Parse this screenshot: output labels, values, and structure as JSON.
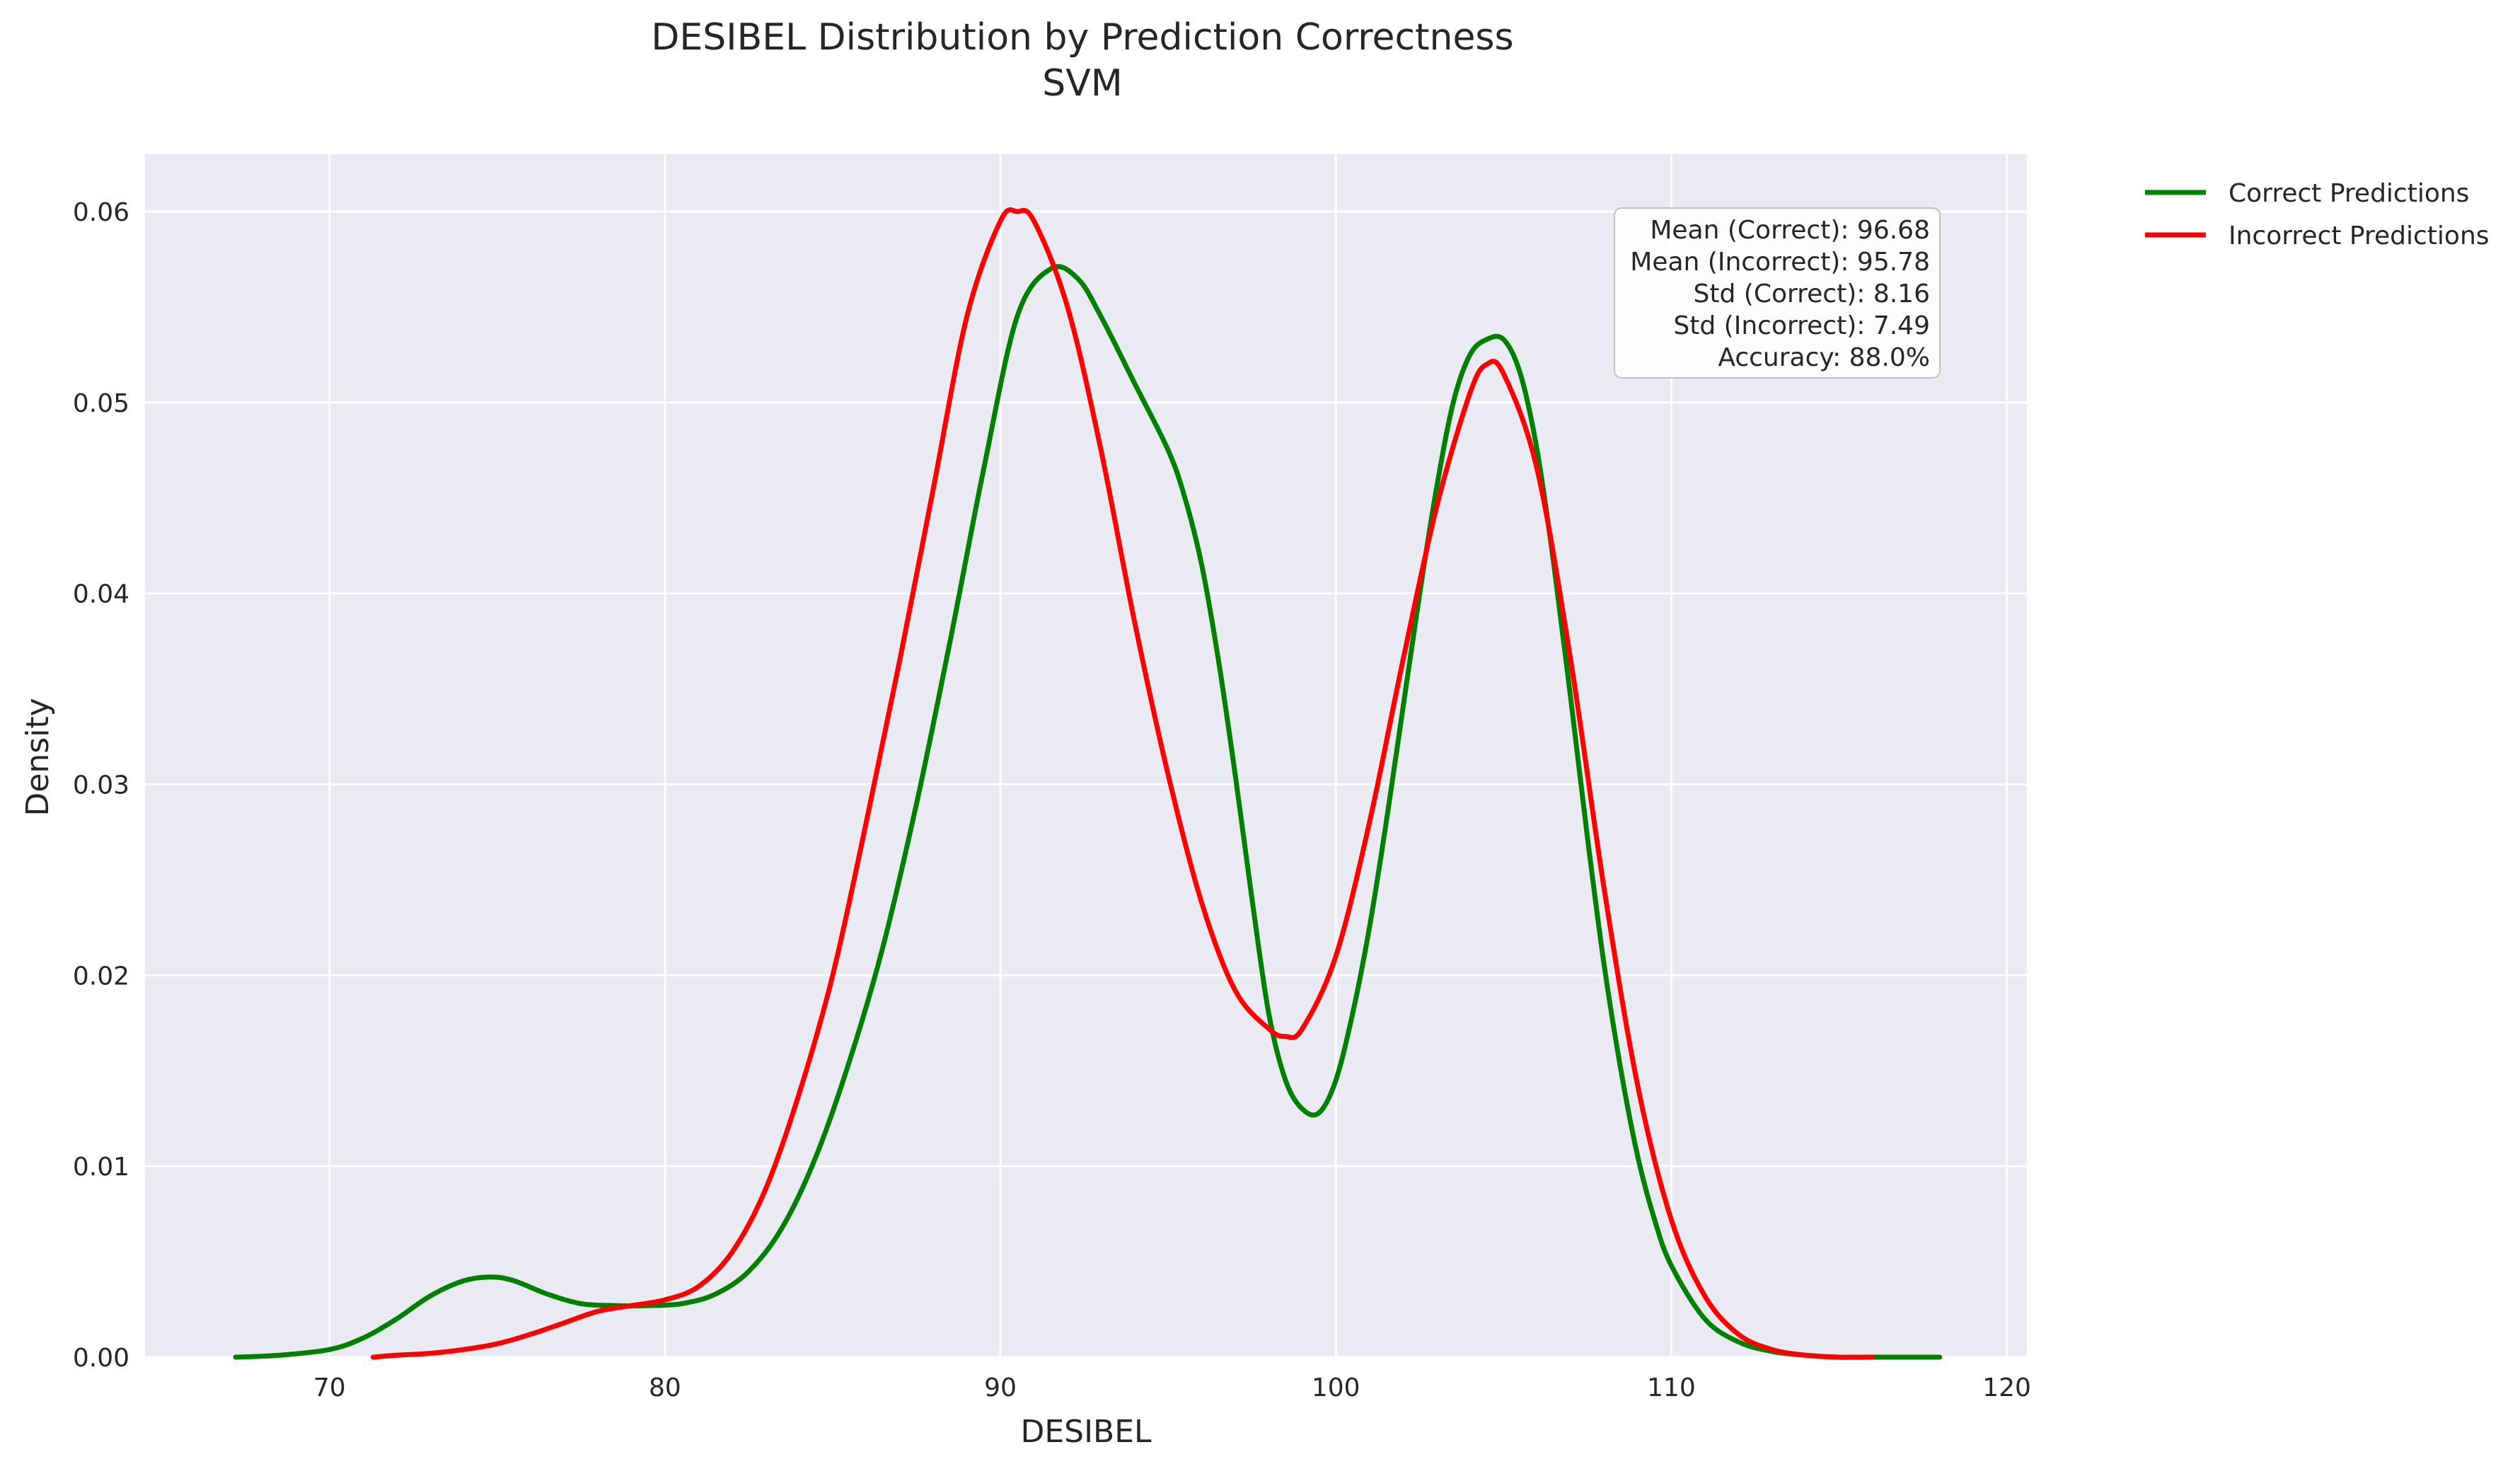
{
  "chart_data": {
    "type": "line",
    "title": "DESIBEL Distribution by Prediction Correctness",
    "subtitle": "SVM",
    "xlabel": "DESIBEL",
    "ylabel": "Density",
    "xlim": [
      64.5,
      120.6
    ],
    "ylim": [
      0,
      0.063
    ],
    "x_ticks": [
      70,
      80,
      90,
      100,
      110,
      120
    ],
    "y_ticks": [
      0.0,
      0.01,
      0.02,
      0.03,
      0.04,
      0.05,
      0.06
    ],
    "grid": true,
    "legend_placement": "outside-top-right",
    "series": [
      {
        "name": "Correct Predictions",
        "color": "#008000",
        "x": [
          67.2,
          68.5,
          70,
          71,
          72,
          73,
          74,
          74.8,
          75.5,
          76.5,
          77.5,
          78.5,
          79.5,
          80.5,
          81.5,
          82.5,
          83.5,
          84.5,
          85.5,
          86.5,
          87.5,
          88.5,
          89.5,
          90.5,
          91.5,
          92.3,
          93,
          94,
          95,
          95.5,
          96,
          96.5,
          97,
          97.5,
          98,
          98.5,
          99,
          99.5,
          100,
          100.5,
          101,
          101.5,
          102,
          102.5,
          103,
          103.5,
          104,
          104.5,
          105,
          105.5,
          106,
          106.5,
          107,
          107.5,
          108,
          108.5,
          109,
          109.5,
          110,
          111,
          112,
          113,
          114,
          115,
          116,
          117,
          118
        ],
        "y": [
          0.0,
          0.0001,
          0.0004,
          0.001,
          0.002,
          0.0032,
          0.004,
          0.0042,
          0.004,
          0.0033,
          0.0028,
          0.0027,
          0.0027,
          0.0028,
          0.0033,
          0.0045,
          0.0068,
          0.0105,
          0.0155,
          0.0215,
          0.029,
          0.0375,
          0.0465,
          0.0545,
          0.057,
          0.0565,
          0.0545,
          0.051,
          0.0475,
          0.045,
          0.0415,
          0.0365,
          0.0305,
          0.024,
          0.018,
          0.0145,
          0.013,
          0.0128,
          0.0145,
          0.018,
          0.0225,
          0.028,
          0.034,
          0.04,
          0.0455,
          0.05,
          0.0525,
          0.0533,
          0.0533,
          0.0515,
          0.0475,
          0.0415,
          0.0345,
          0.0272,
          0.0205,
          0.015,
          0.0105,
          0.0072,
          0.0048,
          0.002,
          0.0008,
          0.0003,
          0.0001,
          0.0,
          0.0,
          0.0,
          0.0
        ]
      },
      {
        "name": "Incorrect Predictions",
        "color": "#ff0000",
        "x": [
          71.3,
          72,
          73,
          74,
          75,
          76,
          77,
          78,
          79,
          80,
          81,
          82,
          83,
          84,
          85,
          86,
          87,
          88,
          89,
          90,
          90.5,
          91,
          92,
          93,
          94,
          95,
          96,
          97,
          98,
          98.5,
          99,
          100,
          101,
          102,
          103,
          104,
          104.5,
          105,
          106,
          107,
          108,
          109,
          110,
          111,
          112,
          113,
          114,
          115,
          116
        ],
        "y": [
          0.0,
          0.0001,
          0.0002,
          0.0004,
          0.0007,
          0.0012,
          0.0018,
          0.0024,
          0.0027,
          0.003,
          0.0037,
          0.0055,
          0.0088,
          0.0138,
          0.02,
          0.028,
          0.0365,
          0.0455,
          0.0545,
          0.0595,
          0.06,
          0.0595,
          0.055,
          0.0475,
          0.0385,
          0.0305,
          0.0238,
          0.0192,
          0.0172,
          0.0168,
          0.0172,
          0.021,
          0.028,
          0.0365,
          0.0445,
          0.0505,
          0.052,
          0.0515,
          0.0465,
          0.0365,
          0.0245,
          0.0142,
          0.0072,
          0.0032,
          0.0012,
          0.0004,
          0.0001,
          0.0,
          0.0
        ]
      }
    ],
    "stats_box": [
      "Mean (Correct): 96.68",
      "Mean (Incorrect): 95.78",
      "Std (Correct): 8.16",
      "Std (Incorrect): 7.49",
      "Accuracy: 88.0%"
    ],
    "colors": {
      "plot_background": "#eaeaf2",
      "grid": "#ffffff",
      "text": "#262626"
    }
  }
}
